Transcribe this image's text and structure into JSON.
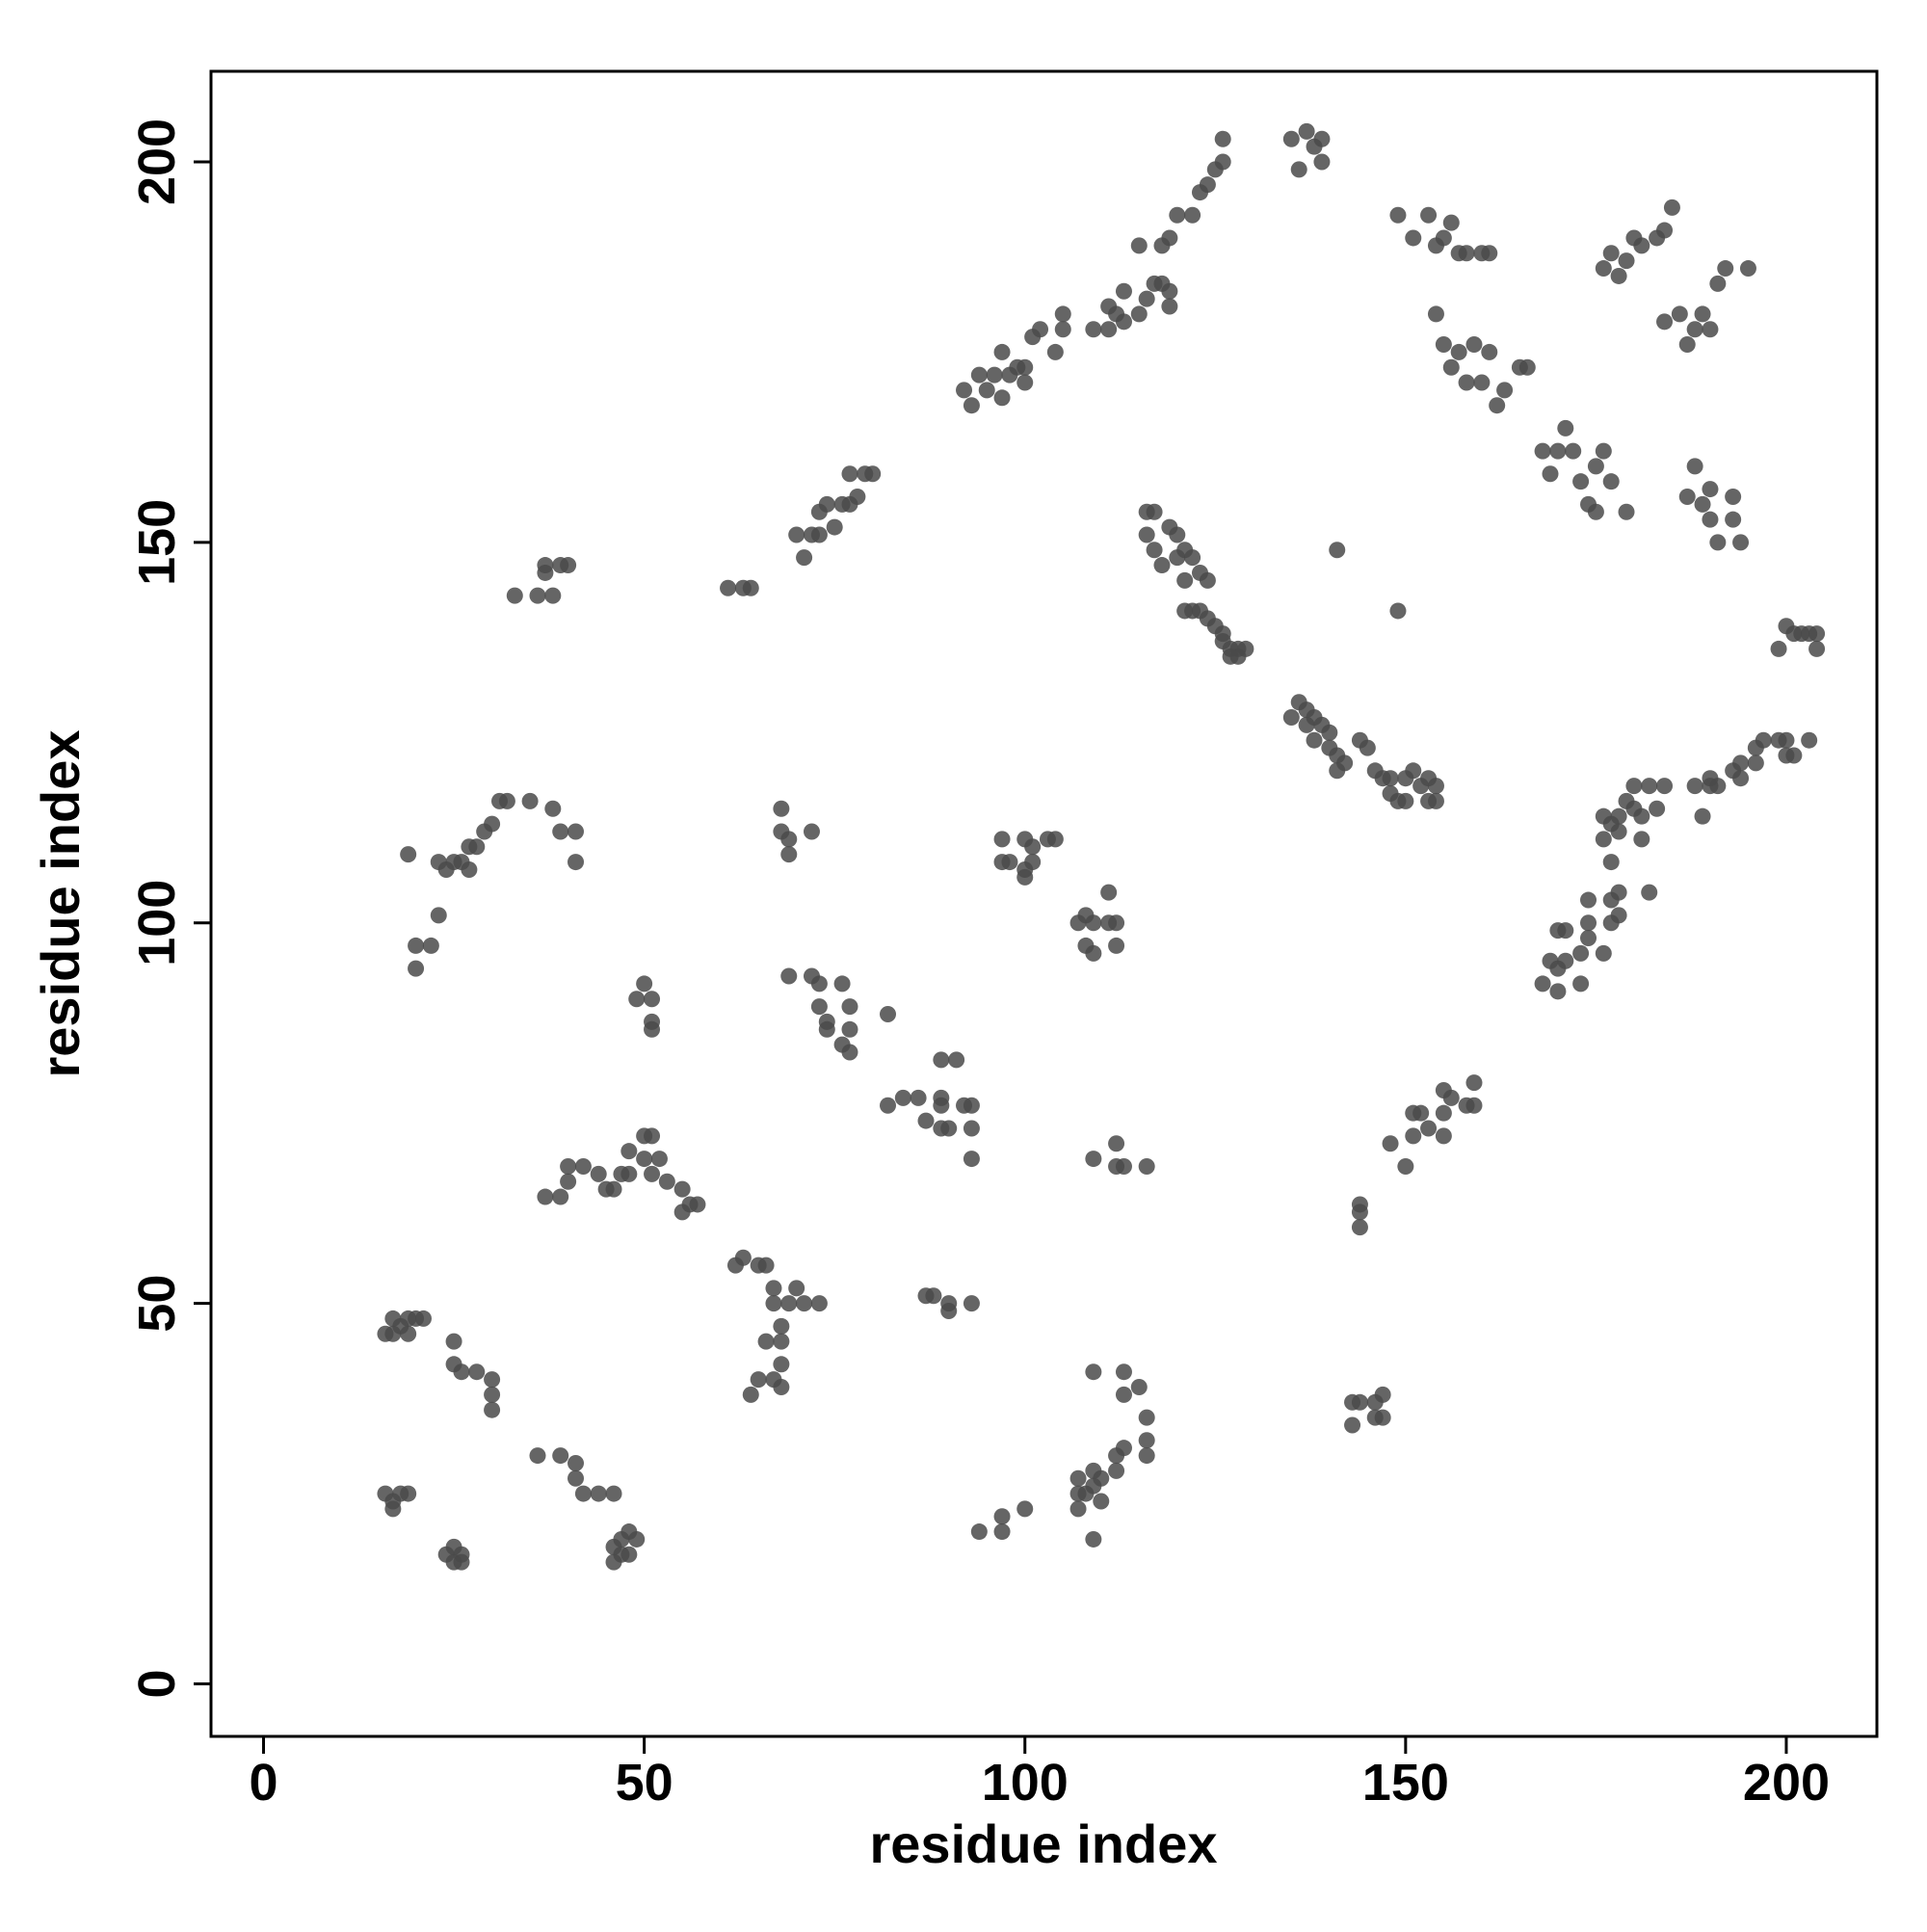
{
  "chart_data": {
    "type": "scatter",
    "xlabel": "residue index",
    "ylabel": "residue index",
    "xlim": [
      -6.9,
      211.9
    ],
    "ylim": [
      -6.9,
      211.9
    ],
    "xticks": [
      0,
      50,
      100,
      150,
      200
    ],
    "yticks": [
      0,
      50,
      100,
      150,
      200
    ],
    "color": "#4a4a4a",
    "x": [
      16,
      17,
      18,
      19,
      20,
      21,
      17,
      19,
      25,
      25,
      26,
      28,
      30,
      30,
      30,
      16,
      17,
      18,
      19,
      17,
      24,
      25,
      25,
      26,
      26,
      36,
      39,
      41,
      41,
      42,
      44,
      46,
      46,
      47,
      48,
      49,
      46,
      47,
      48,
      64,
      65,
      67,
      68,
      68,
      66,
      68,
      68,
      66,
      63,
      62,
      65,
      67,
      69,
      70,
      71,
      73,
      67,
      87,
      88,
      90,
      90,
      93,
      37,
      39,
      40,
      40,
      42,
      44,
      45,
      46,
      47,
      48,
      48,
      50,
      51,
      50,
      52,
      51,
      53,
      55,
      56,
      57,
      55,
      49,
      50,
      51,
      51,
      51,
      69,
      72,
      73,
      73,
      74,
      76,
      77,
      77,
      74,
      76,
      77,
      82,
      82,
      84,
      86,
      87,
      89,
      89,
      89,
      90,
      91,
      89,
      92,
      93,
      93,
      93,
      20,
      22,
      23,
      20,
      19,
      23,
      24,
      25,
      26,
      27,
      27,
      28,
      29,
      30,
      31,
      32,
      35,
      38,
      39,
      41,
      41,
      68,
      68,
      69,
      69,
      72,
      97,
      97,
      98,
      100,
      101,
      100,
      101,
      103,
      104,
      100,
      107,
      108,
      109,
      108,
      109,
      111,
      111,
      112,
      112,
      109,
      112,
      112,
      113,
      116,
      94,
      97,
      97,
      100,
      107,
      107,
      107,
      108,
      109,
      109,
      110,
      110,
      109,
      112,
      112,
      113,
      113,
      113,
      115,
      116,
      116,
      116,
      109,
      143,
      143,
      144,
      146,
      146,
      147,
      147,
      144,
      144,
      144,
      148,
      150,
      151,
      151,
      152,
      153,
      155,
      155,
      155,
      156,
      158,
      159,
      159,
      168,
      169,
      170,
      170,
      170,
      171,
      171,
      173,
      173,
      174,
      174,
      174,
      176,
      177,
      177,
      178,
      178,
      182,
      176,
      176,
      177,
      177,
      178,
      178,
      179,
      180,
      180,
      181,
      181,
      182,
      183,
      184,
      188,
      189,
      190,
      190,
      191,
      193,
      194,
      194,
      196,
      196,
      197,
      199,
      200,
      200,
      201,
      203,
      199,
      200,
      201,
      202,
      203,
      204,
      204,
      144,
      145,
      146,
      147,
      148,
      148,
      149,
      150,
      150,
      151,
      152,
      153,
      154,
      154,
      153,
      135,
      136,
      137,
      137,
      138,
      138,
      139,
      140,
      140,
      141,
      141,
      142,
      116,
      117,
      116,
      117,
      118,
      119,
      120,
      120,
      121,
      122,
      121,
      123,
      124,
      121,
      122,
      123,
      124,
      125,
      126,
      126,
      127,
      128,
      128,
      129,
      127,
      141,
      149,
      33,
      36,
      37,
      38,
      39,
      40,
      37,
      61,
      63,
      64,
      70,
      71,
      72,
      73,
      73,
      74,
      75,
      76,
      77,
      77,
      78,
      79,
      80,
      92,
      93,
      94,
      95,
      96,
      97,
      97,
      98,
      99,
      100,
      100,
      101,
      102,
      104,
      105,
      105,
      109,
      111,
      111,
      112,
      113,
      113,
      115,
      116,
      117,
      118,
      119,
      119,
      115,
      118,
      119,
      120,
      122,
      123,
      124,
      125,
      126,
      126,
      135,
      136,
      137,
      138,
      139,
      139,
      149,
      151,
      153,
      154,
      155,
      156,
      157,
      158,
      160,
      161,
      154,
      155,
      156,
      157,
      158,
      159,
      160,
      161,
      162,
      163,
      166,
      165,
      168,
      169,
      170,
      171,
      172,
      173,
      174,
      175,
      176,
      177,
      179,
      175,
      176,
      177,
      178,
      179,
      180,
      181,
      183,
      185,
      184,
      184,
      186,
      187,
      188,
      189,
      190,
      191,
      192,
      195,
      187,
      188,
      189,
      190,
      190,
      191,
      193,
      193,
      194
    ],
    "y": [
      46,
      46,
      47,
      48,
      48,
      48,
      48,
      46,
      45,
      42,
      41,
      41,
      40,
      38,
      36,
      25,
      24,
      25,
      25,
      23,
      17,
      18,
      16,
      17,
      16,
      30,
      30,
      29,
      27,
      25,
      25,
      25,
      18,
      19,
      20,
      19,
      16,
      17,
      17,
      38,
      40,
      40,
      39,
      42,
      45,
      47,
      45,
      55,
      56,
      55,
      55,
      52,
      50,
      52,
      50,
      50,
      50,
      51,
      51,
      50,
      49,
      50,
      64,
      64,
      66,
      68,
      68,
      67,
      65,
      65,
      67,
      67,
      70,
      72,
      72,
      69,
      69,
      67,
      66,
      65,
      63,
      63,
      62,
      90,
      92,
      90,
      87,
      86,
      93,
      93,
      92,
      89,
      87,
      92,
      89,
      86,
      86,
      84,
      83,
      88,
      76,
      77,
      77,
      74,
      77,
      76,
      73,
      73,
      82,
      82,
      76,
      76,
      73,
      69,
      97,
      97,
      101,
      94,
      109,
      108,
      107,
      108,
      108,
      107,
      110,
      110,
      112,
      113,
      116,
      116,
      116,
      115,
      112,
      112,
      108,
      115,
      112,
      111,
      109,
      112,
      108,
      111,
      108,
      107,
      108,
      111,
      110,
      111,
      111,
      106,
      100,
      101,
      100,
      97,
      96,
      104,
      100,
      100,
      97,
      69,
      71,
      68,
      68,
      68,
      20,
      22,
      20,
      23,
      23,
      25,
      27,
      25,
      28,
      26,
      27,
      24,
      19,
      28,
      30,
      31,
      38,
      41,
      39,
      35,
      32,
      30,
      41,
      34,
      37,
      37,
      37,
      35,
      38,
      35,
      62,
      63,
      60,
      71,
      68,
      72,
      75,
      75,
      73,
      75,
      78,
      72,
      77,
      76,
      76,
      79,
      92,
      95,
      91,
      94,
      99,
      99,
      95,
      92,
      96,
      98,
      100,
      103,
      96,
      103,
      100,
      104,
      101,
      104,
      114,
      111,
      108,
      113,
      114,
      112,
      116,
      118,
      115,
      114,
      111,
      118,
      115,
      118,
      118,
      114,
      118,
      119,
      118,
      120,
      119,
      121,
      123,
      121,
      124,
      124,
      124,
      122,
      122,
      124,
      136,
      139,
      138,
      138,
      138,
      136,
      138,
      124,
      123,
      120,
      119,
      119,
      117,
      116,
      116,
      119,
      120,
      118,
      119,
      118,
      116,
      116,
      127,
      129,
      128,
      126,
      127,
      124,
      126,
      125,
      123,
      122,
      120,
      121,
      154,
      154,
      151,
      149,
      147,
      152,
      151,
      148,
      149,
      148,
      145,
      146,
      145,
      141,
      141,
      141,
      140,
      139,
      138,
      137,
      136,
      136,
      135,
      136,
      135,
      149,
      141,
      143,
      143,
      146,
      143,
      147,
      147,
      147,
      144,
      144,
      144,
      151,
      148,
      151,
      151,
      154,
      155,
      152,
      155,
      155,
      159,
      156,
      159,
      159,
      170,
      168,
      172,
      170,
      172,
      169,
      175,
      172,
      173,
      171,
      173,
      177,
      178,
      175,
      180,
      178,
      178,
      181,
      178,
      180,
      179,
      183,
      180,
      182,
      184,
      184,
      183,
      181,
      189,
      189,
      190,
      193,
      193,
      196,
      197,
      199,
      200,
      203,
      203,
      199,
      204,
      202,
      203,
      200,
      193,
      190,
      193,
      189,
      190,
      192,
      188,
      188,
      188,
      188,
      180,
      176,
      173,
      175,
      171,
      176,
      171,
      175,
      168,
      170,
      173,
      173,
      162,
      159,
      162,
      165,
      162,
      158,
      155,
      160,
      162,
      158,
      154,
      154,
      186,
      188,
      185,
      187,
      190,
      189,
      190,
      194,
      191,
      179,
      180,
      176,
      178,
      180,
      178,
      184,
      186,
      186,
      156,
      160,
      155,
      157,
      153,
      150,
      156,
      153,
      150
    ]
  }
}
